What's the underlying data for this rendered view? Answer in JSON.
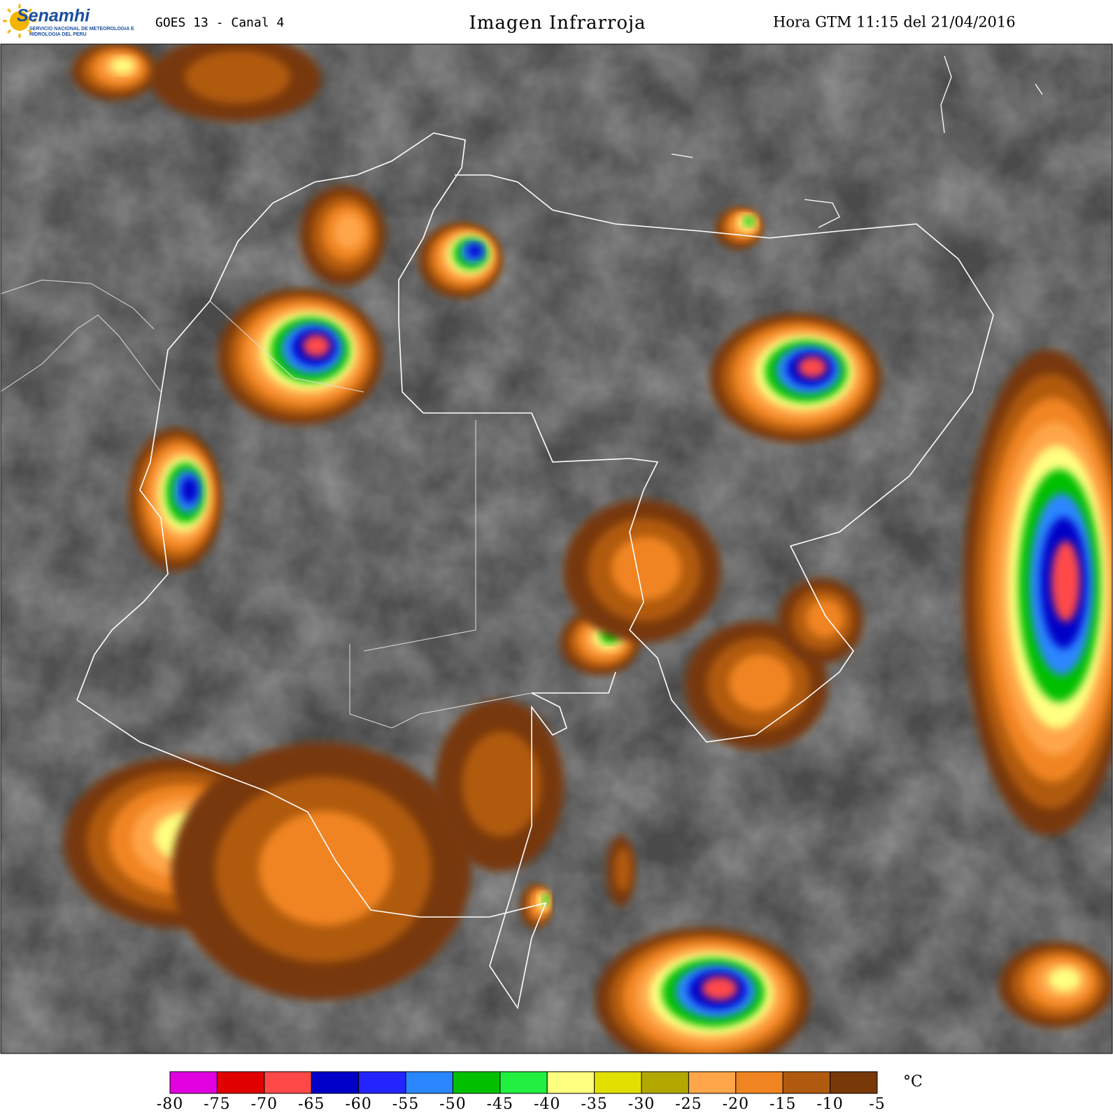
{
  "header": {
    "logo": "Senamhi",
    "agency": "SERVICIO NACIONAL DE METEOROLOGIA E HIDROLOGIA DEL PERU",
    "satellite": "GOES 13 - Canal 4",
    "title": "Imagen Infrarroja",
    "time": "Hora GTM 11:15 del 21/04/2016"
  },
  "legend": {
    "unit": "°C",
    "ticks": [
      -80,
      -75,
      -70,
      -65,
      -60,
      -55,
      -50,
      -45,
      -40,
      -35,
      -30,
      -25,
      -20,
      -15,
      -10,
      -5
    ],
    "colors": [
      "#e000e0",
      "#e00000",
      "#ff4848",
      "#0000c8",
      "#2424ff",
      "#2a86ff",
      "#00c000",
      "#22f040",
      "#ffff80",
      "#e2e000",
      "#b2a800",
      "#ffa54a",
      "#f08420",
      "#b05a10",
      "#783808"
    ]
  }
}
